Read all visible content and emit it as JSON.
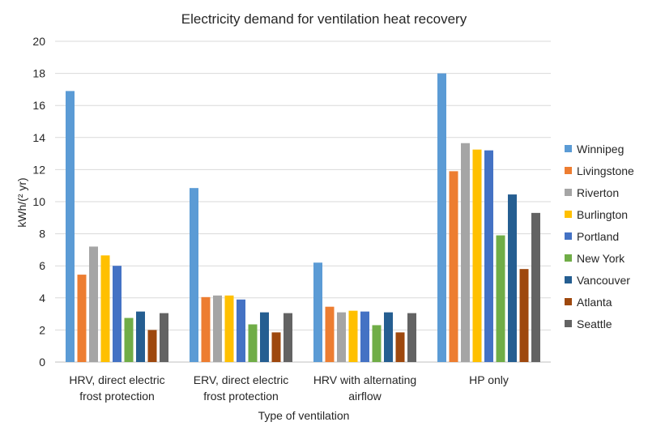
{
  "chart_data": {
    "type": "bar",
    "title": "Electricity demand for ventilation heat recovery",
    "xlabel": "Type of ventilation",
    "ylabel": "kWh/(² yr)",
    "ylim": [
      0,
      20
    ],
    "yticks": [
      "0",
      "2",
      "4",
      "6",
      "8",
      "10",
      "12",
      "14",
      "16",
      "18",
      "20"
    ],
    "grid": true,
    "legend_position": "right",
    "categories": [
      [
        "HRV, direct electric",
        "frost protection"
      ],
      [
        "ERV, direct electric",
        "frost protection"
      ],
      [
        "HRV with alternating",
        "airflow"
      ],
      [
        "HP only"
      ]
    ],
    "series": [
      {
        "name": "Winnipeg",
        "color": "#5B9BD5",
        "values": [
          16.9,
          10.85,
          6.2,
          18.0
        ]
      },
      {
        "name": "Livingstone",
        "color": "#ED7D31",
        "values": [
          5.45,
          4.05,
          3.45,
          11.9
        ]
      },
      {
        "name": "Riverton",
        "color": "#A5A5A5",
        "values": [
          7.2,
          4.15,
          3.1,
          13.65
        ]
      },
      {
        "name": "Burlington",
        "color": "#FFC000",
        "values": [
          6.65,
          4.15,
          3.2,
          13.25
        ]
      },
      {
        "name": "Portland",
        "color": "#4472C4",
        "values": [
          6.0,
          3.9,
          3.15,
          13.2
        ]
      },
      {
        "name": "New York",
        "color": "#70AD47",
        "values": [
          2.75,
          2.35,
          2.3,
          7.9
        ]
      },
      {
        "name": "Vancouver",
        "color": "#255E91",
        "values": [
          3.15,
          3.1,
          3.1,
          10.45
        ]
      },
      {
        "name": "Atlanta",
        "color": "#9E480E",
        "values": [
          2.0,
          1.85,
          1.85,
          5.8
        ]
      },
      {
        "name": "Seattle",
        "color": "#636363",
        "values": [
          3.05,
          3.05,
          3.05,
          9.3
        ]
      }
    ]
  }
}
